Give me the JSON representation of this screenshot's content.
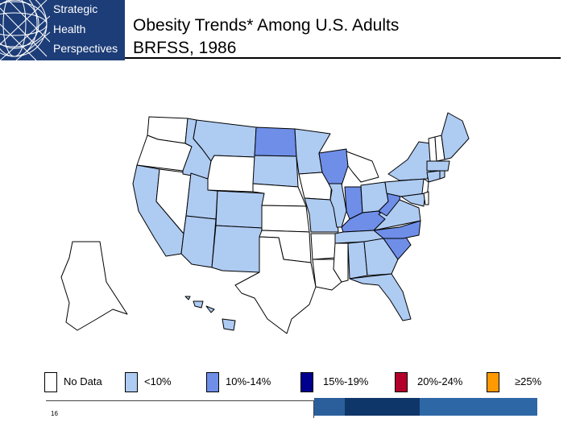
{
  "logo": {
    "lines": [
      "Strategic",
      "Health",
      "Perspectives"
    ]
  },
  "slide": {
    "title_line1": "Obesity Trends* Among U.S. Adults",
    "title_line2": "BRFSS, 1986",
    "number": "16"
  },
  "colors": {
    "no_data": "#ffffff",
    "under_10": "#aecbf2",
    "ten_to_14": "#6e8ee8",
    "fifteen_to_19": "#00008e",
    "twenty_to_24": "#b3002b",
    "over_25": "#ff9900",
    "logo_bg": "#1d3d78"
  },
  "legend": [
    {
      "label": "No Data",
      "color": "#ffffff"
    },
    {
      "label": "<10%",
      "color": "#aecbf2"
    },
    {
      "label": "10%-14%",
      "color": "#6e8ee8"
    },
    {
      "label": "15%-19%",
      "color": "#00008e"
    },
    {
      "label": "20%-24%",
      "color": "#b3002b"
    },
    {
      "label": "≥25%",
      "color": "#ff9900"
    }
  ],
  "map": {
    "categories": {
      "no_data": [
        "WA",
        "OR",
        "NV",
        "WY",
        "KS",
        "NE",
        "OK",
        "TX",
        "AR",
        "LA",
        "MS",
        "IA",
        "MI",
        "NJ",
        "VT",
        "NH",
        "DE",
        "AK"
      ],
      "under_10": [
        "CA",
        "ID",
        "MT",
        "UT",
        "AZ",
        "CO",
        "NM",
        "MN",
        "SD",
        "MO",
        "IL",
        "OH",
        "PA",
        "NY",
        "ME",
        "MA",
        "CT",
        "RI",
        "MD",
        "VA",
        "TN",
        "AL",
        "GA",
        "FL",
        "HI"
      ],
      "ten_to_14": [
        "ND",
        "WI",
        "IN",
        "KY",
        "WV",
        "NC",
        "SC"
      ],
      "fifteen_to_19": [],
      "twenty_to_24": [],
      "over_25": []
    }
  },
  "footer": {
    "bar_colors": [
      "#2a5f9b",
      "#0f3669",
      "#2e67a6"
    ]
  }
}
